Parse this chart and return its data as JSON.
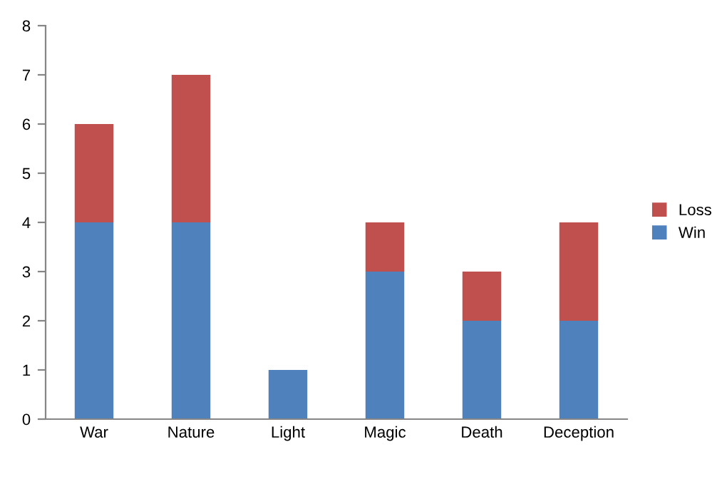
{
  "chart_data": {
    "type": "bar",
    "stacked": true,
    "categories": [
      "War",
      "Nature",
      "Light",
      "Magic",
      "Death",
      "Deception"
    ],
    "series": [
      {
        "name": "Win",
        "color": "#4f81bd",
        "values": [
          4,
          4,
          1,
          3,
          2,
          2
        ]
      },
      {
        "name": "Loss",
        "color": "#c0504d",
        "values": [
          2,
          3,
          0,
          1,
          1,
          2
        ]
      }
    ],
    "ylim": [
      0,
      8
    ],
    "yticks": [
      0,
      1,
      2,
      3,
      4,
      5,
      6,
      7,
      8
    ],
    "grid": false,
    "legend": "right"
  }
}
